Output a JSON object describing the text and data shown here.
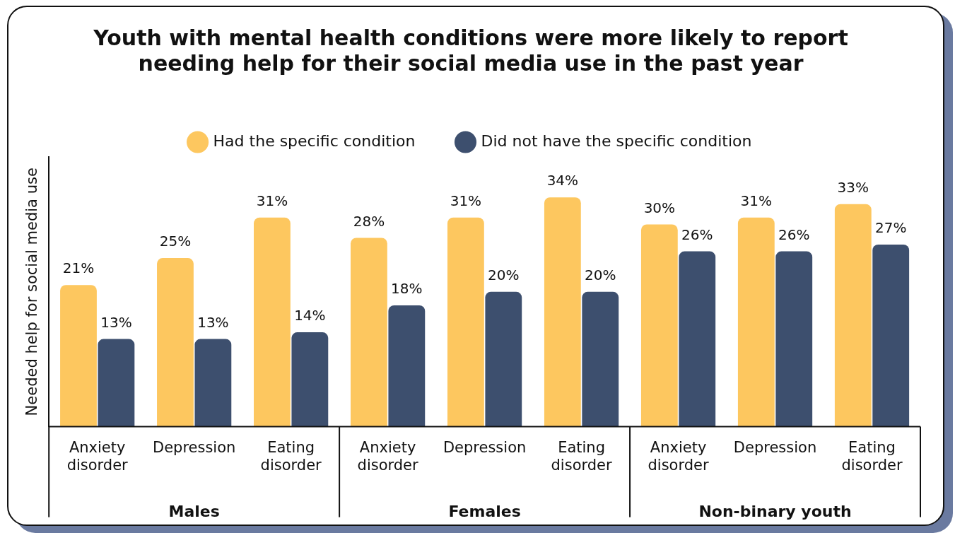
{
  "chart_data": {
    "type": "bar",
    "title": "Youth with mental health conditions were more likely to report needing help for their social media use in the past year",
    "ylabel": "Needed help for social media use",
    "categories": [
      "Anxiety disorder",
      "Depression",
      "Eating disorder",
      "Anxiety disorder",
      "Depression",
      "Eating disorder",
      "Anxiety disorder",
      "Depression",
      "Eating disorder"
    ],
    "series": [
      {
        "name": "Had the specific condition",
        "color": "#fdc75f",
        "values": [
          21,
          25,
          31,
          28,
          31,
          34,
          30,
          31,
          33
        ],
        "value_labels": [
          "21%",
          "25%",
          "31%",
          "28%",
          "31%",
          "34%",
          "30%",
          "31%",
          "33%"
        ]
      },
      {
        "name": "Did not have the specific condition",
        "color": "#3d4f6e",
        "values": [
          13,
          13,
          14,
          18,
          20,
          20,
          26,
          26,
          27
        ],
        "value_labels": [
          "13%",
          "13%",
          "14%",
          "18%",
          "20%",
          "20%",
          "26%",
          "26%",
          "27%"
        ]
      }
    ],
    "annotations": [
      "Males",
      "Females",
      "Non-binary youth"
    ],
    "legend": "top",
    "grid": false
  }
}
